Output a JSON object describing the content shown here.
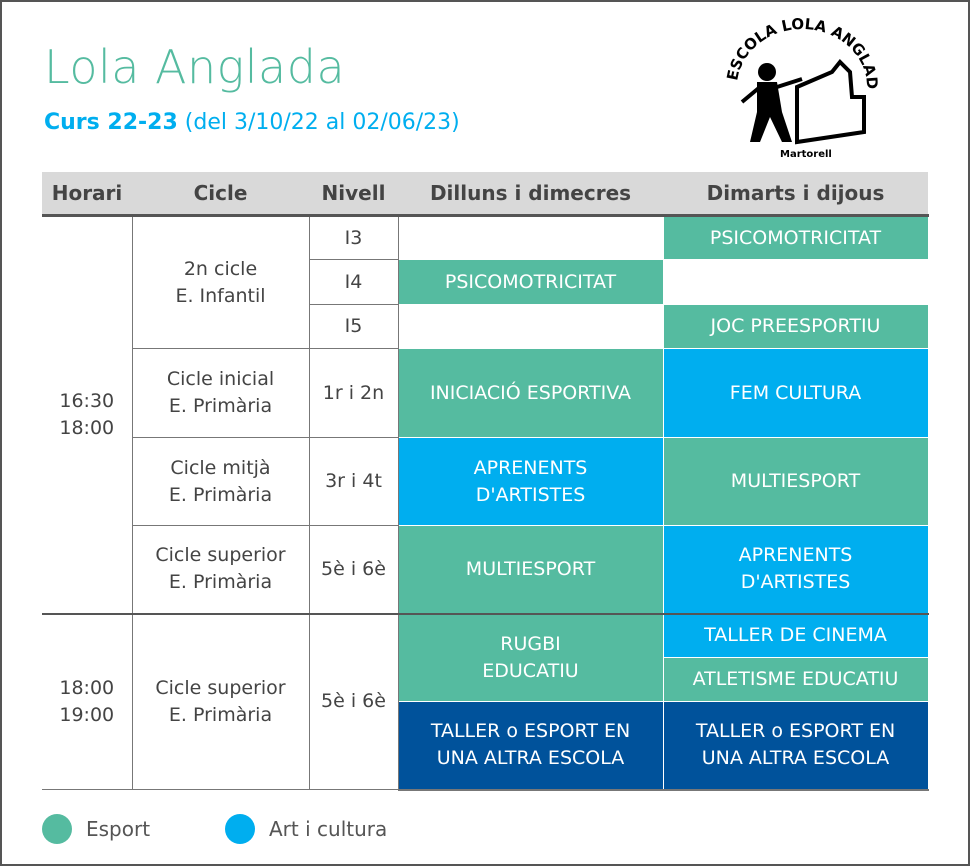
{
  "title": "Lola Anglada",
  "subtitle": {
    "bold": "Curs 22-23",
    "rest": " (del 3/10/22 al 02/06/23)"
  },
  "logo": {
    "text": "ESCOLA LOLA ANGLADA",
    "place": "Martorell"
  },
  "headers": [
    "Horari",
    "Cicle",
    "Nivell",
    "Dilluns i dimecres",
    "Dimarts i dijous"
  ],
  "times": [
    {
      "start": "16:30",
      "end": "18:00"
    },
    {
      "start": "18:00",
      "end": "19:00"
    }
  ],
  "cycles": [
    {
      "l1": "2n cicle",
      "l2": "E. Infantil"
    },
    {
      "l1": "Cicle inicial",
      "l2": "E. Primària"
    },
    {
      "l1": "Cicle mitjà",
      "l2": "E. Primària"
    },
    {
      "l1": "Cicle superior",
      "l2": "E. Primària"
    },
    {
      "l1": "Cicle superior",
      "l2": "E. Primària"
    }
  ],
  "levels": [
    "I3",
    "I4",
    "I5",
    "1r i 2n",
    "3r i 4t",
    "5è i 6è",
    "5è i 6è"
  ],
  "activities": {
    "psico": "PSICOMOTRICITAT",
    "joc": "JOC PREESPORTIU",
    "inic": "INICIACIÓ ESPORTIVA",
    "fem": "FEM CULTURA",
    "apr1": "APRENENTS",
    "apr2": "D'ARTISTES",
    "multi": "MULTIESPORT",
    "rugbi1": "RUGBI",
    "rugbi2": "EDUCATIU",
    "cinema": "TALLER DE CINEMA",
    "atle": "ATLETISME EDUCATIU",
    "taller1": "TALLER o ESPORT EN",
    "taller2": "UNA ALTRA ESCOLA"
  },
  "legend": [
    {
      "label": "Esport",
      "color": "#55BBA0"
    },
    {
      "label": "Art i cultura",
      "color": "#00AEEF"
    }
  ],
  "colors": {
    "esport": "#55BBA0",
    "art": "#00AEEF",
    "other": "#00529B"
  }
}
